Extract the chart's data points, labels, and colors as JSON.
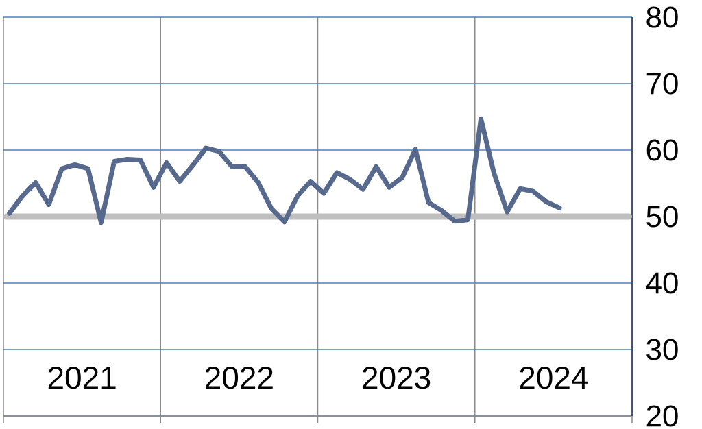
{
  "chart_data": {
    "type": "line",
    "x": [
      "2021-01-15",
      "2021-02-15",
      "2021-03-15",
      "2021-04-15",
      "2021-05-15",
      "2021-06-15",
      "2021-07-15",
      "2021-08-15",
      "2021-09-15",
      "2021-10-15",
      "2021-11-15",
      "2021-12-15",
      "2022-01-15",
      "2022-02-15",
      "2022-03-15",
      "2022-04-15",
      "2022-05-15",
      "2022-06-15",
      "2022-07-15",
      "2022-08-15",
      "2022-09-15",
      "2022-10-15",
      "2022-11-15",
      "2022-12-15",
      "2023-01-15",
      "2023-02-15",
      "2023-03-15",
      "2023-04-15",
      "2023-05-15",
      "2023-06-15",
      "2023-07-15",
      "2023-08-15",
      "2023-09-15",
      "2023-10-15",
      "2023-11-15",
      "2023-12-15",
      "2024-01-15",
      "2024-02-15",
      "2024-03-15",
      "2024-04-15",
      "2024-05-15",
      "2024-06-15",
      "2024-07-15"
    ],
    "series": [
      {
        "color": "#576a8e",
        "values": [
          50.5,
          53.1,
          55.1,
          51.8,
          57.2,
          57.8,
          57.2,
          49.1,
          58.3,
          58.6,
          58.5,
          54.4,
          58.1,
          55.3,
          57.7,
          60.3,
          59.8,
          57.5,
          57.5,
          55.1,
          51.2,
          49.2,
          53.1,
          55.3,
          53.5,
          56.6,
          55.6,
          54.1,
          57.5,
          54.4,
          55.9,
          60.1,
          52.1,
          50.9,
          49.3,
          49.5,
          64.7,
          56.5,
          50.7,
          54.2,
          53.8,
          52.2,
          51.3
        ]
      }
    ],
    "xlim": [
      "2021-01-01",
      "2025-01-01"
    ],
    "xticks": [
      {
        "value": "2021-01-01",
        "label": null
      },
      {
        "value": "2021-07-01",
        "label": "2021"
      },
      {
        "value": "2022-01-01",
        "label": null
      },
      {
        "value": "2022-07-01",
        "label": "2022"
      },
      {
        "value": "2023-01-01",
        "label": null
      },
      {
        "value": "2023-07-01",
        "label": "2023"
      },
      {
        "value": "2024-01-01",
        "label": null
      },
      {
        "value": "2024-07-01",
        "label": "2024"
      },
      {
        "value": "2025-01-01",
        "label": null
      }
    ],
    "ylim": [
      20,
      80
    ],
    "yticks": [
      20,
      30,
      40,
      50,
      60,
      70,
      80
    ],
    "ref_lines": [
      {
        "axis": "y",
        "value": 50,
        "color": "#bfbfbf"
      }
    ],
    "grid": true
  }
}
